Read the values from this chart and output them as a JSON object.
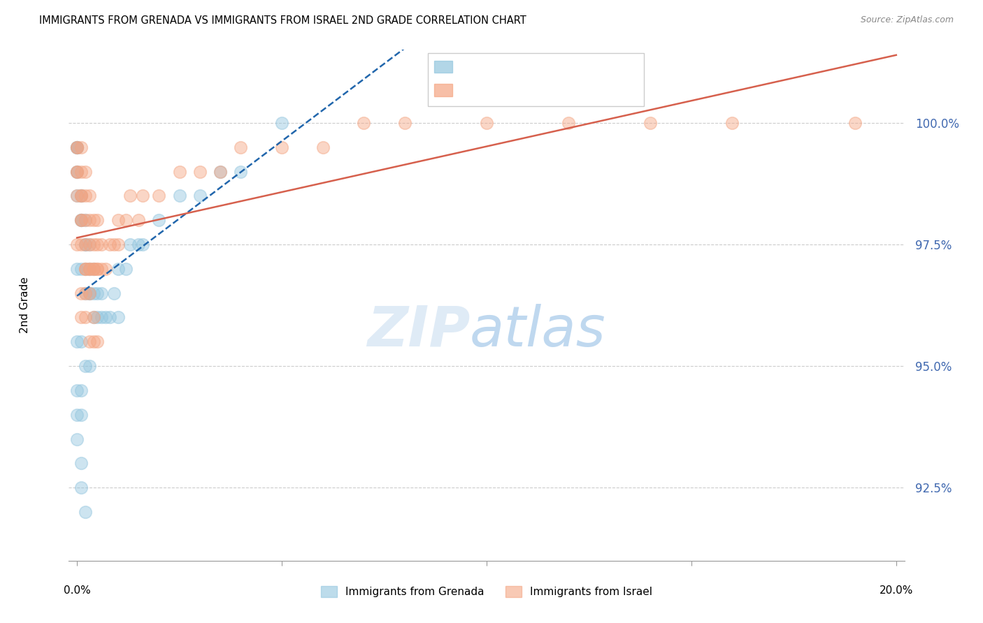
{
  "title": "IMMIGRANTS FROM GRENADA VS IMMIGRANTS FROM ISRAEL 2ND GRADE CORRELATION CHART",
  "source": "Source: ZipAtlas.com",
  "ylabel": "2nd Grade",
  "y_ticks": [
    92.5,
    95.0,
    97.5,
    100.0
  ],
  "y_tick_labels": [
    "92.5%",
    "95.0%",
    "97.5%",
    "100.0%"
  ],
  "color_grenada": "#92c5de",
  "color_israel": "#f4a582",
  "color_trendline_grenada": "#2166ac",
  "color_trendline_israel": "#d6604d",
  "xlim": [
    0.0,
    0.2
  ],
  "ylim": [
    91.0,
    101.5
  ],
  "grenada_x": [
    0.0,
    0.0,
    0.0,
    0.0,
    0.0,
    0.0,
    0.0,
    0.001,
    0.001,
    0.001,
    0.001,
    0.001,
    0.002,
    0.002,
    0.002,
    0.002,
    0.003,
    0.003,
    0.003,
    0.004,
    0.004,
    0.004,
    0.005,
    0.005,
    0.006,
    0.006,
    0.007,
    0.008,
    0.009,
    0.01,
    0.01,
    0.012,
    0.013,
    0.015,
    0.016,
    0.02,
    0.025,
    0.03,
    0.035,
    0.04,
    0.05,
    0.0,
    0.001,
    0.002,
    0.003,
    0.0,
    0.001,
    0.002,
    0.003,
    0.0,
    0.001,
    0.0,
    0.001,
    0.0,
    0.001,
    0.001,
    0.002
  ],
  "grenada_y": [
    99.5,
    99.5,
    99.5,
    99.5,
    99.0,
    99.0,
    98.5,
    98.5,
    98.5,
    98.0,
    98.0,
    98.0,
    98.0,
    97.5,
    97.5,
    97.0,
    97.5,
    97.0,
    96.5,
    97.0,
    96.5,
    96.0,
    96.5,
    96.0,
    96.5,
    96.0,
    96.0,
    96.0,
    96.5,
    97.0,
    96.0,
    97.0,
    97.5,
    97.5,
    97.5,
    98.0,
    98.5,
    98.5,
    99.0,
    99.0,
    100.0,
    97.0,
    97.0,
    96.5,
    96.5,
    95.5,
    95.5,
    95.0,
    95.0,
    94.5,
    94.5,
    94.0,
    94.0,
    93.5,
    93.0,
    92.5,
    92.0
  ],
  "israel_x": [
    0.0,
    0.0,
    0.0,
    0.0,
    0.0,
    0.001,
    0.001,
    0.001,
    0.001,
    0.001,
    0.001,
    0.002,
    0.002,
    0.002,
    0.002,
    0.002,
    0.003,
    0.003,
    0.003,
    0.003,
    0.004,
    0.004,
    0.004,
    0.005,
    0.005,
    0.005,
    0.006,
    0.006,
    0.007,
    0.008,
    0.009,
    0.01,
    0.01,
    0.012,
    0.013,
    0.015,
    0.016,
    0.02,
    0.025,
    0.03,
    0.035,
    0.04,
    0.05,
    0.06,
    0.07,
    0.08,
    0.1,
    0.12,
    0.14,
    0.16,
    0.19,
    0.0,
    0.001,
    0.002,
    0.003,
    0.004,
    0.005,
    0.001,
    0.002,
    0.003,
    0.004,
    0.001,
    0.002,
    0.003,
    0.004,
    0.005
  ],
  "israel_y": [
    99.5,
    99.5,
    99.0,
    99.0,
    98.5,
    99.5,
    99.0,
    98.5,
    98.5,
    98.0,
    98.0,
    99.0,
    98.5,
    98.0,
    97.5,
    97.0,
    98.5,
    98.0,
    97.5,
    97.0,
    98.0,
    97.5,
    97.0,
    98.0,
    97.5,
    97.0,
    97.5,
    97.0,
    97.0,
    97.5,
    97.5,
    98.0,
    97.5,
    98.0,
    98.5,
    98.0,
    98.5,
    98.5,
    99.0,
    99.0,
    99.0,
    99.5,
    99.5,
    99.5,
    100.0,
    100.0,
    100.0,
    100.0,
    100.0,
    100.0,
    100.0,
    97.5,
    97.5,
    97.0,
    97.0,
    97.0,
    97.0,
    96.5,
    96.5,
    96.5,
    96.0,
    96.0,
    96.0,
    95.5,
    95.5,
    95.5
  ]
}
